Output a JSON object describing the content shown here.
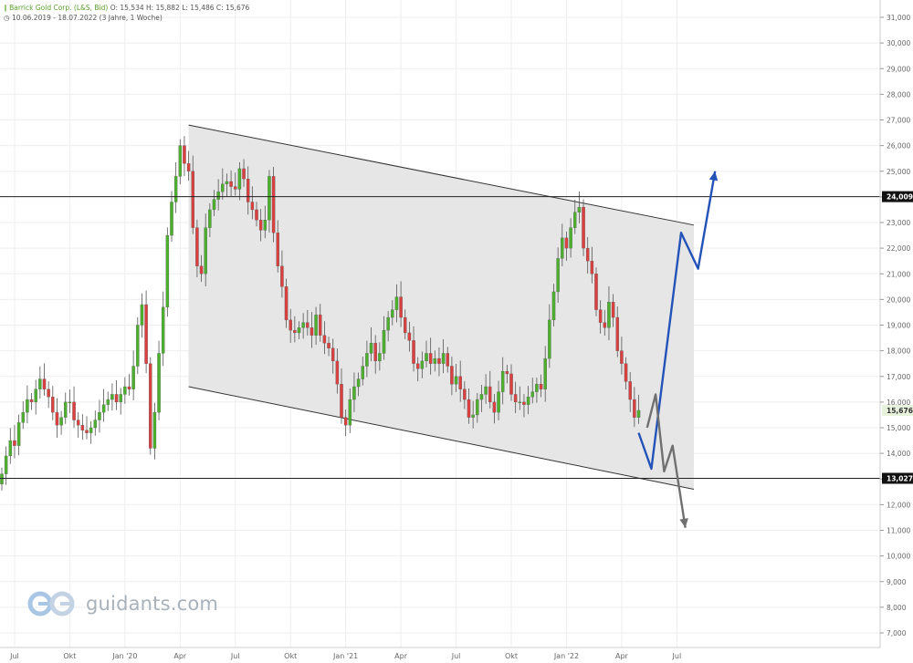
{
  "header": {
    "instrument": "Barrick Gold Corp. (L&S, Bid)",
    "ohlc": "O: 15,534  H: 15,882  L: 15,486  C: 15,676",
    "range": "10.06.2019 - 18.07.2022  (3 Jahre, 1 Woche)"
  },
  "logo": {
    "text": "guidants.com"
  },
  "colors": {
    "up": "#4caf2e",
    "down": "#d94040",
    "channel_fill": "#e6e6e6",
    "channel_line": "#333333",
    "bull_path": "#2453b8",
    "bear_path": "#707070"
  },
  "chart_data": {
    "type": "candlestick",
    "title": "",
    "xlabel": "",
    "ylabel": "",
    "ylim": [
      6.5,
      31.5
    ],
    "yticks": [
      "7,000",
      "8,000",
      "9,000",
      "10,000",
      "11,000",
      "12,000",
      "13,000",
      "14,000",
      "15,000",
      "16,000",
      "17,000",
      "18,000",
      "19,000",
      "20,000",
      "21,000",
      "22,000",
      "23,000",
      "24,000",
      "25,000",
      "26,000",
      "27,000",
      "28,000",
      "29,000",
      "30,000",
      "31,000"
    ],
    "xticks": [
      {
        "label": "Jul",
        "week": 3
      },
      {
        "label": "Okt",
        "week": 16
      },
      {
        "label": "Jan '20",
        "week": 29
      },
      {
        "label": "Apr",
        "week": 42
      },
      {
        "label": "Jul",
        "week": 55
      },
      {
        "label": "Okt",
        "week": 68
      },
      {
        "label": "Jan '21",
        "week": 81
      },
      {
        "label": "Apr",
        "week": 94
      },
      {
        "label": "Jul",
        "week": 107
      },
      {
        "label": "Okt",
        "week": 120
      },
      {
        "label": "Jan '22",
        "week": 133
      },
      {
        "label": "Apr",
        "week": 146
      },
      {
        "label": "Jul",
        "week": 159
      }
    ],
    "ohlc_close": [
      13.2,
      13.9,
      14.5,
      14.3,
      15.2,
      15.6,
      16.1,
      16.0,
      16.5,
      16.9,
      16.5,
      16.2,
      15.6,
      15.1,
      15.4,
      16.0,
      16.0,
      15.3,
      15.1,
      14.9,
      14.8,
      15.0,
      15.3,
      15.6,
      15.9,
      16.1,
      16.3,
      16.0,
      16.3,
      16.6,
      16.5,
      17.4,
      19.0,
      19.8,
      17.5,
      14.2,
      15.6,
      17.9,
      19.7,
      22.5,
      23.8,
      24.8,
      26.0,
      25.3,
      25.0,
      22.8,
      21.3,
      21.0,
      22.8,
      23.5,
      23.9,
      24.2,
      24.5,
      24.6,
      24.4,
      24.3,
      25.1,
      24.7,
      23.8,
      23.5,
      23.1,
      22.7,
      23.1,
      24.8,
      22.6,
      21.3,
      20.5,
      19.2,
      18.8,
      18.7,
      18.9,
      19.1,
      18.9,
      18.6,
      19.4,
      18.6,
      18.3,
      18.1,
      17.6,
      16.7,
      15.4,
      15.1,
      16.1,
      16.6,
      16.9,
      17.4,
      17.9,
      18.3,
      17.6,
      17.9,
      18.8,
      19.3,
      19.6,
      20.1,
      19.3,
      18.7,
      18.4,
      17.5,
      17.3,
      17.6,
      17.9,
      17.5,
      17.7,
      17.5,
      17.9,
      17.4,
      16.7,
      17.0,
      16.5,
      16.1,
      15.4,
      15.5,
      16.1,
      16.3,
      16.6,
      16.0,
      15.6,
      16.4,
      17.2,
      17.1,
      16.3,
      16.0,
      16.0,
      15.9,
      16.2,
      16.4,
      16.7,
      16.5,
      17.7,
      19.2,
      20.3,
      21.6,
      22.4,
      22.0,
      22.8,
      23.4,
      23.6,
      22.0,
      21.5,
      21.0,
      19.6,
      19.1,
      18.9,
      19.9,
      19.3,
      18.0,
      17.5,
      16.8,
      16.1,
      15.4,
      15.676
    ],
    "reference_lines": [
      {
        "label": "24,009",
        "value": 24.009
      },
      {
        "label": "13,027",
        "value": 13.027
      }
    ],
    "last_price": {
      "label": "15,676",
      "value": 15.676
    },
    "channel": {
      "upper": [
        {
          "week": 44,
          "value": 26.8
        },
        {
          "week": 163,
          "value": 22.9
        }
      ],
      "lower": [
        {
          "week": 44,
          "value": 16.6
        },
        {
          "week": 163,
          "value": 12.6
        }
      ]
    },
    "scenario_bull": [
      {
        "week": 150,
        "value": 14.8
      },
      {
        "week": 153,
        "value": 13.4
      },
      {
        "week": 160,
        "value": 22.6
      },
      {
        "week": 164,
        "value": 21.2
      },
      {
        "week": 168,
        "value": 25.0
      }
    ],
    "scenario_bear": [
      {
        "week": 152,
        "value": 15.0
      },
      {
        "week": 154,
        "value": 16.3
      },
      {
        "week": 156,
        "value": 13.3
      },
      {
        "week": 158,
        "value": 14.3
      },
      {
        "week": 161,
        "value": 11.1
      }
    ]
  }
}
